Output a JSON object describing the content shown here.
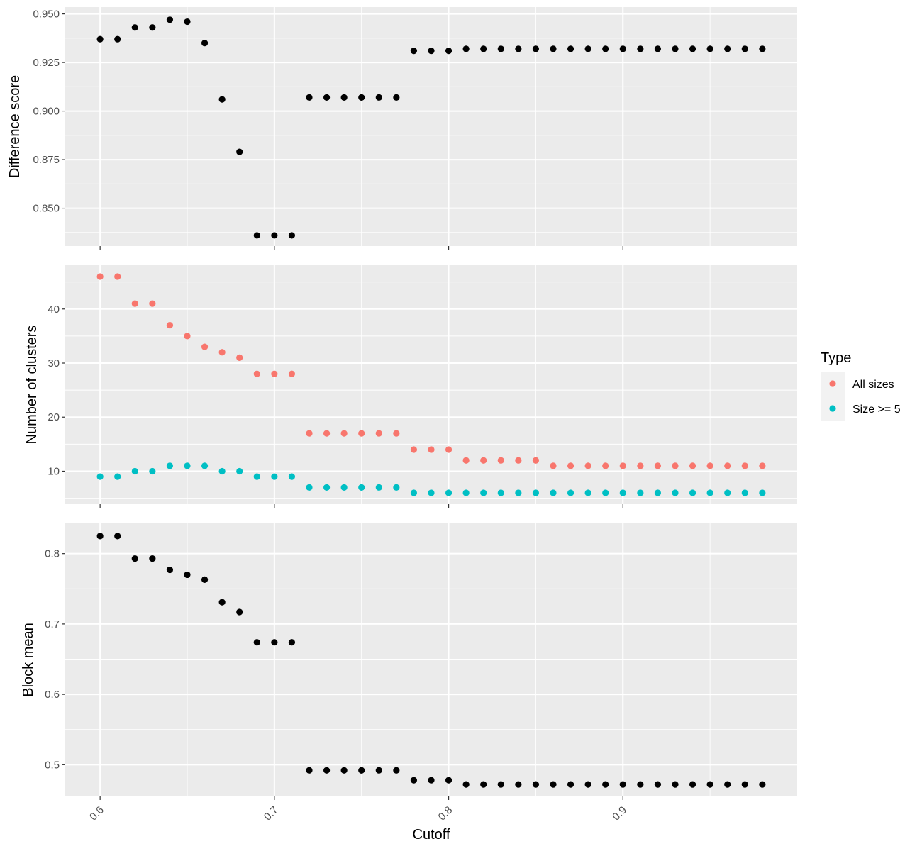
{
  "chart_data": {
    "type": "scatter",
    "x": [
      0.6,
      0.61,
      0.62,
      0.63,
      0.64,
      0.65,
      0.66,
      0.67,
      0.68,
      0.69,
      0.7,
      0.71,
      0.72,
      0.73,
      0.74,
      0.75,
      0.76,
      0.77,
      0.78,
      0.79,
      0.8,
      0.81,
      0.82,
      0.83,
      0.84,
      0.85,
      0.86,
      0.87,
      0.88,
      0.89,
      0.9,
      0.91,
      0.92,
      0.93,
      0.94,
      0.95,
      0.96,
      0.97,
      0.98
    ],
    "xlabel": "Cutoff",
    "x_ticks": [
      "0.6",
      "0.7",
      "0.8",
      "0.9"
    ],
    "xlim": [
      0.58,
      1.0
    ],
    "grid": true,
    "legend": {
      "title": "Type",
      "position": "right",
      "entries": [
        {
          "label": "All sizes",
          "color": "#F8766D"
        },
        {
          "label": "Size >= 5",
          "color": "#00BFC4"
        }
      ]
    },
    "panels": [
      {
        "ylabel": "Difference score",
        "ylim": [
          0.8305,
          0.9535
        ],
        "y_ticks": [
          "0.850",
          "0.875",
          "0.900",
          "0.925",
          "0.950"
        ],
        "series": [
          {
            "color": "#000000",
            "values": [
              0.937,
              0.937,
              0.943,
              0.943,
              0.947,
              0.946,
              0.935,
              0.906,
              0.879,
              0.836,
              0.836,
              0.836,
              0.907,
              0.907,
              0.907,
              0.907,
              0.907,
              0.907,
              0.931,
              0.931,
              0.931,
              0.932,
              0.932,
              0.932,
              0.932,
              0.932,
              0.932,
              0.932,
              0.932,
              0.932,
              0.932,
              0.932,
              0.932,
              0.932,
              0.932,
              0.932,
              0.932,
              0.932,
              0.932
            ]
          }
        ]
      },
      {
        "ylabel": "Number of clusters",
        "ylim": [
          3.9,
          48.1
        ],
        "y_ticks": [
          "10",
          "20",
          "30",
          "40"
        ],
        "series": [
          {
            "name": "All sizes",
            "color": "#F8766D",
            "values": [
              46,
              46,
              41,
              41,
              37,
              35,
              33,
              32,
              31,
              28,
              28,
              28,
              17,
              17,
              17,
              17,
              17,
              17,
              14,
              14,
              14,
              12,
              12,
              12,
              12,
              12,
              11,
              11,
              11,
              11,
              11,
              11,
              11,
              11,
              11,
              11,
              11,
              11,
              11
            ]
          },
          {
            "name": "Size >= 5",
            "color": "#00BFC4",
            "values": [
              9,
              9,
              10,
              10,
              11,
              11,
              11,
              10,
              10,
              9,
              9,
              9,
              7,
              7,
              7,
              7,
              7,
              7,
              6,
              6,
              6,
              6,
              6,
              6,
              6,
              6,
              6,
              6,
              6,
              6,
              6,
              6,
              6,
              6,
              6,
              6,
              6,
              6,
              6
            ]
          }
        ]
      },
      {
        "ylabel": "Block mean",
        "ylim": [
          0.455,
          0.843
        ],
        "y_ticks": [
          "0.5",
          "0.6",
          "0.7",
          "0.8"
        ],
        "series": [
          {
            "color": "#000000",
            "values": [
              0.825,
              0.825,
              0.793,
              0.793,
              0.777,
              0.77,
              0.763,
              0.731,
              0.717,
              0.674,
              0.674,
              0.674,
              0.492,
              0.492,
              0.492,
              0.492,
              0.492,
              0.492,
              0.478,
              0.478,
              0.478,
              0.472,
              0.472,
              0.472,
              0.472,
              0.472,
              0.472,
              0.472,
              0.472,
              0.472,
              0.472,
              0.472,
              0.472,
              0.472,
              0.472,
              0.472,
              0.472,
              0.472,
              0.472
            ]
          }
        ]
      }
    ]
  }
}
